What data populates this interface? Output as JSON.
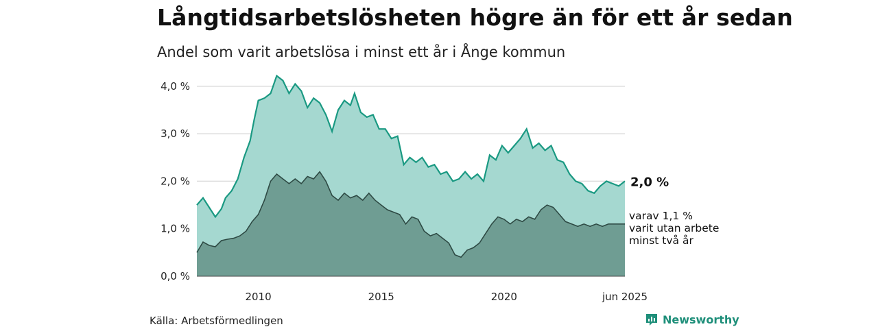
{
  "header": {
    "title": "Långtidsarbetslösheten högre än för ett år sedan",
    "subtitle": "Andel som varit arbetslösa i minst ett år i Ånge kommun"
  },
  "footer": {
    "source": "Källa: Arbetsförmedlingen",
    "brand": "Newsworthy",
    "brand_icon": "newsworthy-logo-icon"
  },
  "colors": {
    "total_line": "#1a9982",
    "total_fill": "#a5d8d0",
    "longterm_line": "#2e4a44",
    "longterm_fill": "#6f9d93",
    "grid": "#dddddd"
  },
  "chart_data": {
    "type": "area",
    "x_start": "2008-01",
    "x_end": "2025-06",
    "x_ticks": [
      {
        "x": "2010-07",
        "label": "2010"
      },
      {
        "x": "2015-07",
        "label": "2015"
      },
      {
        "x": "2020-07",
        "label": "2020"
      },
      {
        "x": "2025-06",
        "label": "jun 2025"
      }
    ],
    "y_ticks": [
      {
        "y": 0,
        "label": "0,0 %"
      },
      {
        "y": 1,
        "label": "1,0 %"
      },
      {
        "y": 2,
        "label": "2,0 %"
      },
      {
        "y": 3,
        "label": "3,0 %"
      },
      {
        "y": 4,
        "label": "4,0 %"
      }
    ],
    "ylim": [
      0,
      4.2
    ],
    "grid": true,
    "end_label": "2,0 %",
    "sub_label_lines": [
      "varav 1,1 %",
      "varit utan arbete",
      "minst två år"
    ],
    "series": [
      {
        "key": "total",
        "points": [
          [
            "2008-01",
            1.5
          ],
          [
            "2008-04",
            1.65
          ],
          [
            "2008-07",
            1.45
          ],
          [
            "2008-10",
            1.25
          ],
          [
            "2009-01",
            1.42
          ],
          [
            "2009-03",
            1.65
          ],
          [
            "2009-06",
            1.8
          ],
          [
            "2009-09",
            2.05
          ],
          [
            "2009-12",
            2.5
          ],
          [
            "2010-03",
            2.85
          ],
          [
            "2010-05",
            3.3
          ],
          [
            "2010-07",
            3.7
          ],
          [
            "2010-10",
            3.75
          ],
          [
            "2011-01",
            3.85
          ],
          [
            "2011-04",
            4.22
          ],
          [
            "2011-07",
            4.12
          ],
          [
            "2011-10",
            3.85
          ],
          [
            "2012-01",
            4.05
          ],
          [
            "2012-04",
            3.9
          ],
          [
            "2012-07",
            3.55
          ],
          [
            "2012-10",
            3.75
          ],
          [
            "2013-01",
            3.65
          ],
          [
            "2013-04",
            3.4
          ],
          [
            "2013-07",
            3.05
          ],
          [
            "2013-10",
            3.5
          ],
          [
            "2014-01",
            3.7
          ],
          [
            "2014-04",
            3.6
          ],
          [
            "2014-06",
            3.85
          ],
          [
            "2014-09",
            3.45
          ],
          [
            "2014-12",
            3.35
          ],
          [
            "2015-03",
            3.4
          ],
          [
            "2015-06",
            3.1
          ],
          [
            "2015-09",
            3.1
          ],
          [
            "2015-12",
            2.9
          ],
          [
            "2016-03",
            2.95
          ],
          [
            "2016-06",
            2.35
          ],
          [
            "2016-09",
            2.5
          ],
          [
            "2016-12",
            2.4
          ],
          [
            "2017-03",
            2.5
          ],
          [
            "2017-06",
            2.3
          ],
          [
            "2017-09",
            2.35
          ],
          [
            "2017-12",
            2.15
          ],
          [
            "2018-03",
            2.2
          ],
          [
            "2018-06",
            2.0
          ],
          [
            "2018-09",
            2.05
          ],
          [
            "2018-12",
            2.2
          ],
          [
            "2019-03",
            2.05
          ],
          [
            "2019-06",
            2.15
          ],
          [
            "2019-09",
            2.0
          ],
          [
            "2019-12",
            2.55
          ],
          [
            "2020-03",
            2.45
          ],
          [
            "2020-06",
            2.75
          ],
          [
            "2020-09",
            2.6
          ],
          [
            "2020-12",
            2.75
          ],
          [
            "2021-03",
            2.9
          ],
          [
            "2021-06",
            3.1
          ],
          [
            "2021-09",
            2.7
          ],
          [
            "2021-12",
            2.8
          ],
          [
            "2022-03",
            2.65
          ],
          [
            "2022-06",
            2.75
          ],
          [
            "2022-09",
            2.45
          ],
          [
            "2022-12",
            2.4
          ],
          [
            "2023-03",
            2.15
          ],
          [
            "2023-06",
            2.0
          ],
          [
            "2023-09",
            1.95
          ],
          [
            "2023-12",
            1.8
          ],
          [
            "2024-03",
            1.75
          ],
          [
            "2024-06",
            1.9
          ],
          [
            "2024-09",
            2.0
          ],
          [
            "2024-12",
            1.95
          ],
          [
            "2025-03",
            1.9
          ],
          [
            "2025-06",
            2.0
          ]
        ]
      },
      {
        "key": "longterm",
        "points": [
          [
            "2008-01",
            0.5
          ],
          [
            "2008-04",
            0.72
          ],
          [
            "2008-07",
            0.65
          ],
          [
            "2008-10",
            0.62
          ],
          [
            "2009-01",
            0.75
          ],
          [
            "2009-04",
            0.78
          ],
          [
            "2009-07",
            0.8
          ],
          [
            "2009-10",
            0.85
          ],
          [
            "2010-01",
            0.95
          ],
          [
            "2010-04",
            1.15
          ],
          [
            "2010-07",
            1.3
          ],
          [
            "2010-10",
            1.6
          ],
          [
            "2011-01",
            2.0
          ],
          [
            "2011-04",
            2.15
          ],
          [
            "2011-07",
            2.05
          ],
          [
            "2011-10",
            1.95
          ],
          [
            "2012-01",
            2.05
          ],
          [
            "2012-04",
            1.95
          ],
          [
            "2012-07",
            2.1
          ],
          [
            "2012-10",
            2.05
          ],
          [
            "2013-01",
            2.2
          ],
          [
            "2013-04",
            2.0
          ],
          [
            "2013-07",
            1.7
          ],
          [
            "2013-10",
            1.6
          ],
          [
            "2014-01",
            1.75
          ],
          [
            "2014-04",
            1.65
          ],
          [
            "2014-07",
            1.7
          ],
          [
            "2014-10",
            1.6
          ],
          [
            "2015-01",
            1.75
          ],
          [
            "2015-04",
            1.6
          ],
          [
            "2015-07",
            1.5
          ],
          [
            "2015-10",
            1.4
          ],
          [
            "2016-01",
            1.35
          ],
          [
            "2016-04",
            1.3
          ],
          [
            "2016-07",
            1.1
          ],
          [
            "2016-10",
            1.25
          ],
          [
            "2017-01",
            1.2
          ],
          [
            "2017-04",
            0.95
          ],
          [
            "2017-07",
            0.85
          ],
          [
            "2017-10",
            0.9
          ],
          [
            "2018-01",
            0.8
          ],
          [
            "2018-04",
            0.7
          ],
          [
            "2018-07",
            0.45
          ],
          [
            "2018-10",
            0.4
          ],
          [
            "2019-01",
            0.55
          ],
          [
            "2019-04",
            0.6
          ],
          [
            "2019-07",
            0.7
          ],
          [
            "2019-10",
            0.9
          ],
          [
            "2020-01",
            1.1
          ],
          [
            "2020-04",
            1.25
          ],
          [
            "2020-07",
            1.2
          ],
          [
            "2020-10",
            1.1
          ],
          [
            "2021-01",
            1.2
          ],
          [
            "2021-04",
            1.15
          ],
          [
            "2021-07",
            1.25
          ],
          [
            "2021-10",
            1.2
          ],
          [
            "2022-01",
            1.4
          ],
          [
            "2022-04",
            1.5
          ],
          [
            "2022-07",
            1.45
          ],
          [
            "2022-10",
            1.3
          ],
          [
            "2023-01",
            1.15
          ],
          [
            "2023-04",
            1.1
          ],
          [
            "2023-07",
            1.05
          ],
          [
            "2023-10",
            1.1
          ],
          [
            "2024-01",
            1.05
          ],
          [
            "2024-04",
            1.1
          ],
          [
            "2024-07",
            1.05
          ],
          [
            "2024-10",
            1.1
          ],
          [
            "2025-01",
            1.1
          ],
          [
            "2025-06",
            1.1
          ]
        ]
      }
    ]
  }
}
